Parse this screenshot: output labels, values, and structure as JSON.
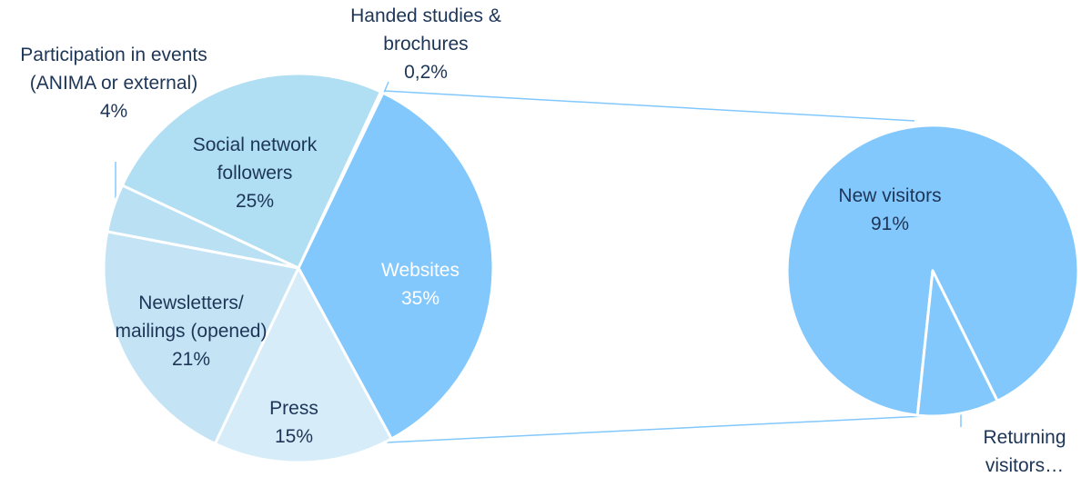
{
  "chart_data": [
    {
      "type": "pie",
      "categories": [
        "Handed studies & brochures",
        "Websites",
        "Press",
        "Newsletters/ mailings (opened)",
        "Participation in events (ANIMA or external)",
        "Social network followers"
      ],
      "values": [
        0.2,
        35,
        15,
        21,
        4,
        25
      ],
      "value_labels": [
        "0,2%",
        "35%",
        "15%",
        "21%",
        "4%",
        "25%"
      ],
      "colors": [
        "#b0def2",
        "#82c8fd",
        "#d6ecf8",
        "#c4e4f5",
        "#b9e0f3",
        "#b0def2"
      ]
    },
    {
      "type": "pie",
      "categories": [
        "New visitors",
        "Returning visitors…"
      ],
      "values": [
        91,
        9
      ],
      "value_labels": [
        "91%",
        null
      ],
      "colors": [
        "#82c8fd",
        "#82c8fd"
      ]
    }
  ]
}
